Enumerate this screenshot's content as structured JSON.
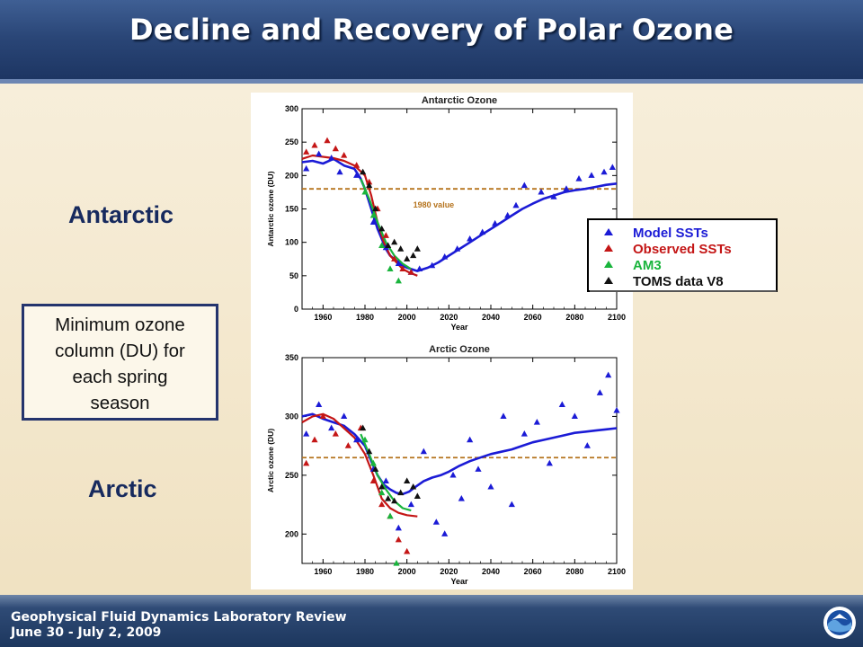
{
  "header": {
    "title": "Decline and Recovery of Polar Ozone"
  },
  "labels": {
    "antarctic": "Antarctic",
    "arctic": "Arctic"
  },
  "caption": {
    "lines": [
      "Minimum ozone",
      "column (DU) for",
      "each spring",
      "season"
    ]
  },
  "footer": {
    "line1": "Geophysical Fluid Dynamics Laboratory Review",
    "line2": "June 30 - July 2, 2009",
    "logo_icon": "noaa-logo-icon"
  },
  "colors": {
    "model": "#1b1bd6",
    "observed": "#c41616",
    "am3": "#19b43c",
    "toms": "#111111",
    "reference": "#b5731d"
  },
  "legend": [
    {
      "label": "Model SSTs",
      "series": "model"
    },
    {
      "label": "Observed SSTs",
      "series": "observed"
    },
    {
      "label": "AM3",
      "series": "am3"
    },
    {
      "label": "TOMS data V8",
      "series": "toms"
    }
  ],
  "chart_data": [
    {
      "type": "line",
      "title": "Antarctic Ozone",
      "xlabel": "Year",
      "ylabel": "Antarctic ozone (DU)",
      "xlim": [
        1950,
        2100
      ],
      "ylim": [
        0,
        300
      ],
      "xticks": [
        1960,
        1980,
        2000,
        2020,
        2040,
        2060,
        2080,
        2100
      ],
      "yticks": [
        0,
        50,
        100,
        150,
        200,
        250,
        300
      ],
      "reference": {
        "value": 180,
        "label": "1980 value"
      },
      "series": [
        {
          "series": "model",
          "kind": "line",
          "x": [
            1950,
            1955,
            1960,
            1965,
            1970,
            1975,
            1978,
            1980,
            1982,
            1984,
            1986,
            1988,
            1990,
            1992,
            1994,
            1996,
            1998,
            2000,
            2002,
            2005,
            2010,
            2015,
            2020,
            2025,
            2030,
            2035,
            2040,
            2045,
            2050,
            2055,
            2060,
            2065,
            2070,
            2075,
            2080,
            2085,
            2090,
            2095,
            2100
          ],
          "y": [
            220,
            222,
            218,
            225,
            215,
            210,
            195,
            180,
            160,
            140,
            120,
            105,
            90,
            80,
            75,
            70,
            65,
            62,
            60,
            57,
            62,
            70,
            80,
            90,
            100,
            110,
            120,
            130,
            140,
            150,
            158,
            165,
            170,
            175,
            178,
            180,
            183,
            186,
            188
          ]
        },
        {
          "series": "model",
          "kind": "points",
          "x": [
            1952,
            1958,
            1964,
            1968,
            1976,
            1984,
            1990,
            1996,
            2002,
            2006,
            2012,
            2018,
            2024,
            2030,
            2036,
            2042,
            2048,
            2052,
            2056,
            2064,
            2070,
            2076,
            2082,
            2088,
            2094,
            2098
          ],
          "y": [
            210,
            232,
            226,
            205,
            200,
            130,
            92,
            68,
            55,
            60,
            65,
            78,
            90,
            105,
            115,
            128,
            140,
            155,
            185,
            175,
            168,
            180,
            195,
            200,
            205,
            212
          ]
        },
        {
          "series": "observed",
          "kind": "line",
          "x": [
            1950,
            1955,
            1960,
            1965,
            1970,
            1975,
            1980,
            1983,
            1986,
            1989,
            1992,
            1995,
            1998,
            2001,
            2005
          ],
          "y": [
            225,
            230,
            228,
            226,
            222,
            215,
            200,
            170,
            130,
            100,
            80,
            70,
            60,
            55,
            50
          ]
        },
        {
          "series": "observed",
          "kind": "points",
          "x": [
            1952,
            1956,
            1962,
            1966,
            1970,
            1976,
            1982,
            1986,
            1990,
            1994,
            1998,
            2002
          ],
          "y": [
            235,
            245,
            252,
            240,
            230,
            215,
            190,
            150,
            110,
            75,
            60,
            55
          ]
        },
        {
          "series": "am3",
          "kind": "line",
          "x": [
            1978,
            1982,
            1986,
            1990,
            1994,
            1998,
            2002
          ],
          "y": [
            195,
            165,
            130,
            100,
            80,
            68,
            60
          ]
        },
        {
          "series": "am3",
          "kind": "points",
          "x": [
            1980,
            1984,
            1988,
            1992,
            1996
          ],
          "y": [
            175,
            140,
            95,
            60,
            42
          ]
        },
        {
          "series": "toms",
          "kind": "points",
          "x": [
            1979,
            1982,
            1985,
            1988,
            1991,
            1994,
            1997,
            2000,
            2003,
            2005
          ],
          "y": [
            205,
            185,
            150,
            120,
            95,
            100,
            90,
            75,
            80,
            90
          ]
        }
      ]
    },
    {
      "type": "line",
      "title": "Arctic Ozone",
      "xlabel": "Year",
      "ylabel": "Arctic ozone (DU)",
      "xlim": [
        1950,
        2100
      ],
      "ylim": [
        175,
        350
      ],
      "xticks": [
        1960,
        1980,
        2000,
        2020,
        2040,
        2060,
        2080,
        2100
      ],
      "yticks": [
        200,
        250,
        300,
        350
      ],
      "reference": {
        "value": 265,
        "label": ""
      },
      "series": [
        {
          "series": "model",
          "kind": "line",
          "x": [
            1950,
            1955,
            1960,
            1965,
            1970,
            1975,
            1980,
            1983,
            1986,
            1989,
            1992,
            1995,
            1998,
            2001,
            2004,
            2008,
            2012,
            2016,
            2020,
            2025,
            2030,
            2035,
            2040,
            2045,
            2050,
            2055,
            2060,
            2065,
            2070,
            2075,
            2080,
            2085,
            2090,
            2095,
            2100
          ],
          "y": [
            300,
            302,
            298,
            295,
            292,
            285,
            275,
            262,
            250,
            242,
            238,
            235,
            234,
            236,
            240,
            245,
            248,
            250,
            253,
            258,
            262,
            265,
            268,
            270,
            272,
            275,
            278,
            280,
            282,
            284,
            286,
            287,
            288,
            289,
            290
          ]
        },
        {
          "series": "model",
          "kind": "points",
          "x": [
            1952,
            1958,
            1964,
            1970,
            1976,
            1984,
            1990,
            1996,
            2002,
            2008,
            2014,
            2018,
            2022,
            2026,
            2030,
            2034,
            2040,
            2046,
            2050,
            2056,
            2062,
            2068,
            2074,
            2080,
            2086,
            2092,
            2096,
            2100
          ],
          "y": [
            285,
            310,
            290,
            300,
            280,
            255,
            245,
            205,
            225,
            270,
            210,
            200,
            250,
            230,
            280,
            255,
            240,
            300,
            225,
            285,
            295,
            260,
            310,
            300,
            275,
            320,
            335,
            305
          ]
        },
        {
          "series": "observed",
          "kind": "line",
          "x": [
            1950,
            1955,
            1960,
            1965,
            1970,
            1975,
            1980,
            1984,
            1988,
            1992,
            1996,
            2000,
            2005
          ],
          "y": [
            295,
            300,
            302,
            298,
            290,
            282,
            268,
            250,
            230,
            222,
            218,
            216,
            215
          ]
        },
        {
          "series": "observed",
          "kind": "points",
          "x": [
            1952,
            1956,
            1960,
            1966,
            1972,
            1978,
            1984,
            1988,
            1992,
            1996,
            2000
          ],
          "y": [
            260,
            280,
            300,
            285,
            275,
            290,
            245,
            225,
            215,
            195,
            185
          ]
        },
        {
          "series": "am3",
          "kind": "line",
          "x": [
            1978,
            1982,
            1986,
            1990,
            1994,
            1998,
            2002
          ],
          "y": [
            285,
            268,
            250,
            238,
            228,
            222,
            220
          ]
        },
        {
          "series": "am3",
          "kind": "points",
          "x": [
            1980,
            1984,
            1988,
            1992,
            1995
          ],
          "y": [
            280,
            260,
            235,
            215,
            175
          ]
        },
        {
          "series": "toms",
          "kind": "points",
          "x": [
            1979,
            1982,
            1985,
            1988,
            1991,
            1994,
            1997,
            2000,
            2003,
            2005
          ],
          "y": [
            290,
            270,
            255,
            240,
            230,
            228,
            235,
            245,
            240,
            232
          ]
        }
      ]
    }
  ]
}
